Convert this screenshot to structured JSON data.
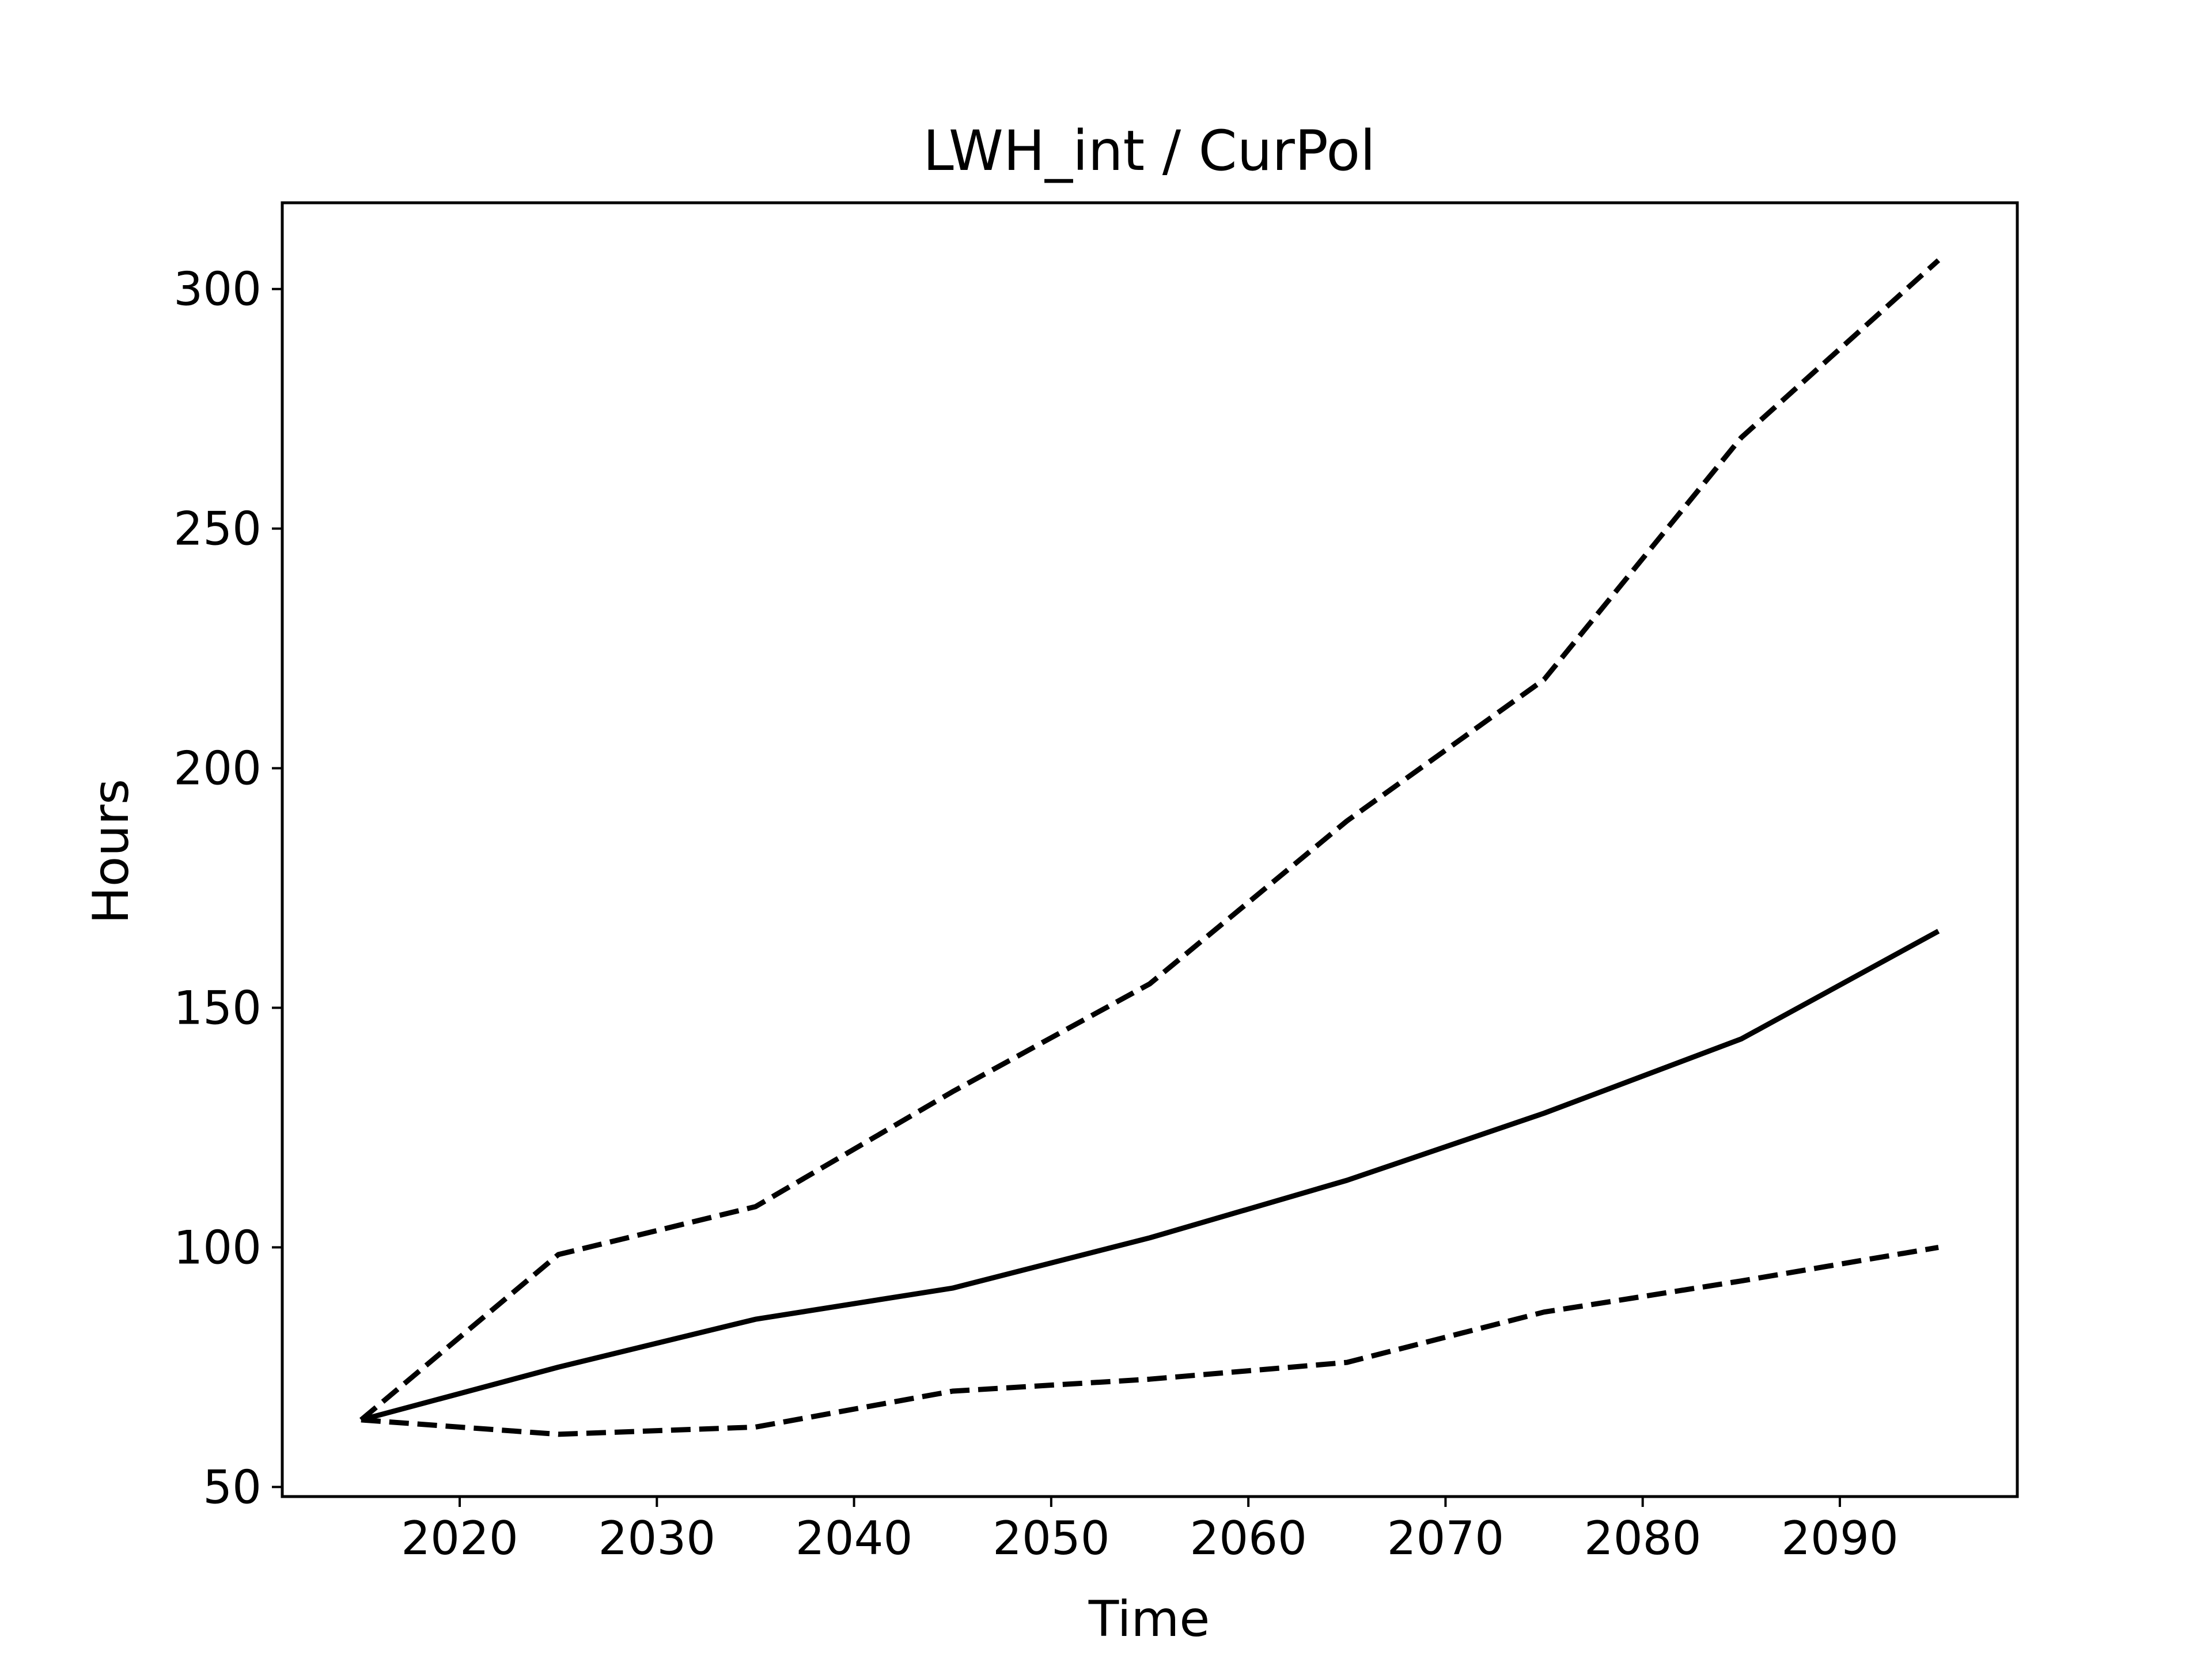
{
  "chart_data": {
    "type": "line",
    "title": "LWH_int / CurPol",
    "xlabel": "Time",
    "ylabel": "Hours",
    "xlim": [
      2011,
      2099
    ],
    "ylim": [
      48,
      318
    ],
    "xticks": [
      2020,
      2030,
      2040,
      2050,
      2060,
      2070,
      2080,
      2090
    ],
    "yticks": [
      50,
      100,
      150,
      200,
      250,
      300
    ],
    "grid": false,
    "x": [
      2015,
      2025,
      2035,
      2045,
      2055,
      2065,
      2075,
      2085,
      2095
    ],
    "series": [
      {
        "style": "solid",
        "color": "#000000",
        "values": [
          64,
          75,
          85,
          91.5,
          102,
          114,
          128,
          143.5,
          166
        ]
      },
      {
        "style": "dashed",
        "color": "#000000",
        "values": [
          64,
          98.5,
          108.5,
          132.5,
          155,
          189,
          218.5,
          269,
          306
        ]
      },
      {
        "style": "dashed",
        "color": "#000000",
        "values": [
          64,
          61,
          62.5,
          70,
          72.5,
          76,
          86.5,
          93,
          100
        ]
      }
    ]
  }
}
